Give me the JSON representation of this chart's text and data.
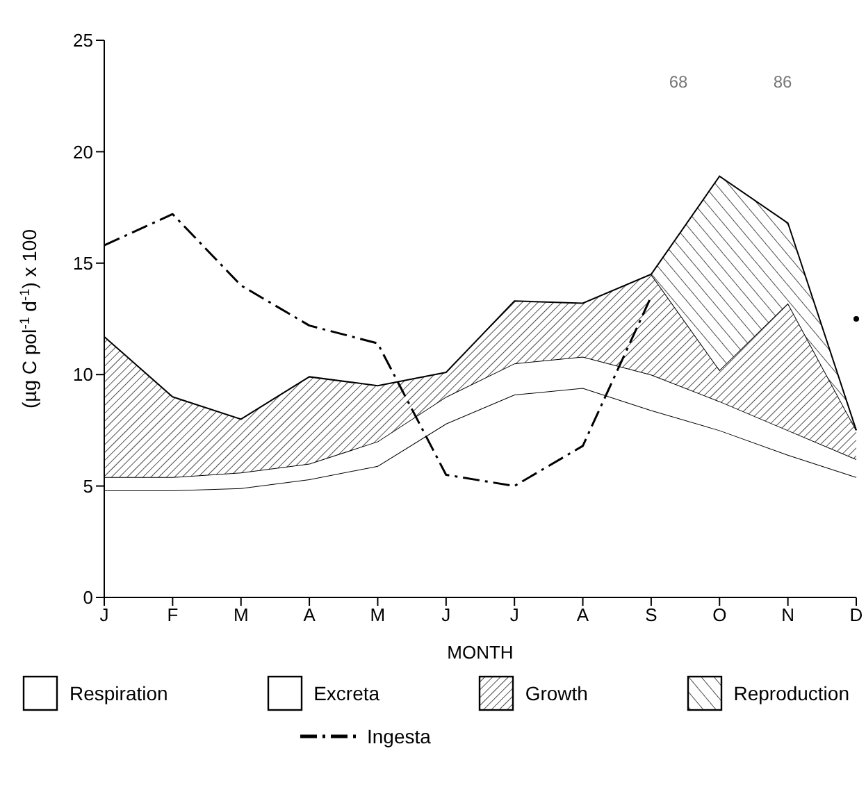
{
  "chart_data": {
    "type": "area",
    "stacked": true,
    "xlabel": "MONTH",
    "ylabel": "(µg C pol$^{-1}$ d$^{-1}$) x 100",
    "annotations": [
      "68",
      "86"
    ],
    "categories": [
      "J",
      "F",
      "M",
      "A",
      "M",
      "J",
      "J",
      "A",
      "S",
      "O",
      "N",
      "D"
    ],
    "ylim": [
      0,
      25
    ],
    "yticks": [
      0,
      5,
      10,
      15,
      20,
      25
    ],
    "grid": false,
    "legend": "bottom",
    "series": [
      {
        "name": "Respiration",
        "color": "#000000",
        "values": [
          4.8,
          4.8,
          4.9,
          5.3,
          5.9,
          7.8,
          9.1,
          9.4,
          8.4,
          7.5,
          6.4,
          5.4
        ]
      },
      {
        "name": "Excreta",
        "color": "#000000",
        "values": [
          0.6,
          0.6,
          0.7,
          0.7,
          1.1,
          1.2,
          1.4,
          1.4,
          1.6,
          1.3,
          1.1,
          0.8
        ]
      },
      {
        "name": "Growth",
        "color": "#000000",
        "values": [
          6.3,
          3.6,
          2.4,
          3.9,
          2.5,
          1.1,
          2.8,
          2.4,
          4.5,
          1.4,
          5.7,
          1.3
        ]
      },
      {
        "name": "Reproduction",
        "color": "#000000",
        "values": [
          null,
          null,
          null,
          null,
          null,
          null,
          null,
          null,
          0,
          8.7,
          3.6,
          0
        ]
      },
      {
        "name": "Ingesta",
        "type": "line",
        "line_style": "dashdot",
        "color": "#000000",
        "values": [
          15.8,
          17.2,
          14.0,
          12.2,
          11.4,
          5.5,
          5.0,
          6.8,
          13.5,
          null,
          null,
          12.5
        ]
      }
    ]
  }
}
